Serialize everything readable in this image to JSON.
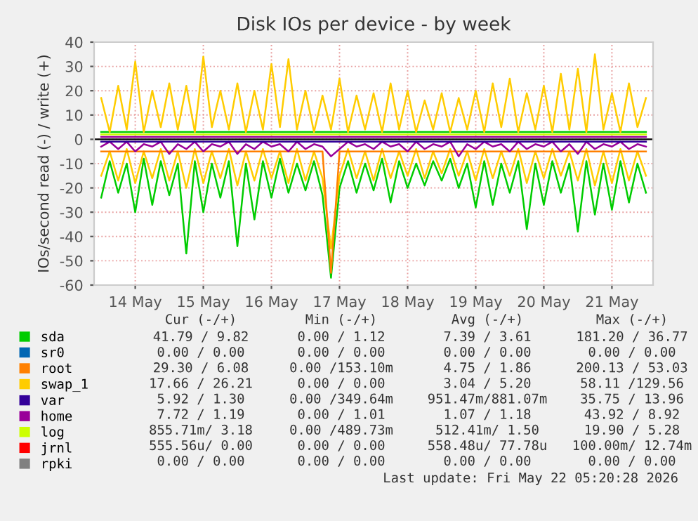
{
  "chart_data": {
    "type": "line",
    "title": "Disk IOs per device - by week",
    "ylabel": "IOs/second read (-) / write (+)",
    "x": [
      "2026-05-13T12:00",
      "2026-05-13T15:00",
      "2026-05-13T18:00",
      "2026-05-13T21:00",
      "2026-05-14T00:00",
      "2026-05-14T03:00",
      "2026-05-14T06:00",
      "2026-05-14T09:00",
      "2026-05-14T12:00",
      "2026-05-14T15:00",
      "2026-05-14T18:00",
      "2026-05-14T21:00",
      "2026-05-15T00:00",
      "2026-05-15T03:00",
      "2026-05-15T06:00",
      "2026-05-15T09:00",
      "2026-05-15T12:00",
      "2026-05-15T15:00",
      "2026-05-15T18:00",
      "2026-05-15T21:00",
      "2026-05-16T00:00",
      "2026-05-16T03:00",
      "2026-05-16T06:00",
      "2026-05-16T09:00",
      "2026-05-16T12:00",
      "2026-05-16T15:00",
      "2026-05-16T18:00",
      "2026-05-16T21:00",
      "2026-05-17T00:00",
      "2026-05-17T03:00",
      "2026-05-17T06:00",
      "2026-05-17T09:00",
      "2026-05-17T12:00",
      "2026-05-17T15:00",
      "2026-05-17T18:00",
      "2026-05-17T21:00",
      "2026-05-18T00:00",
      "2026-05-18T03:00",
      "2026-05-18T06:00",
      "2026-05-18T09:00",
      "2026-05-18T12:00",
      "2026-05-18T15:00",
      "2026-05-18T18:00",
      "2026-05-18T21:00",
      "2026-05-19T00:00",
      "2026-05-19T03:00",
      "2026-05-19T06:00",
      "2026-05-19T09:00",
      "2026-05-19T12:00",
      "2026-05-19T15:00",
      "2026-05-19T18:00",
      "2026-05-19T21:00",
      "2026-05-20T00:00",
      "2026-05-20T03:00",
      "2026-05-20T06:00",
      "2026-05-20T09:00",
      "2026-05-20T12:00",
      "2026-05-20T15:00",
      "2026-05-20T18:00",
      "2026-05-20T21:00",
      "2026-05-21T00:00",
      "2026-05-21T03:00",
      "2026-05-21T06:00",
      "2026-05-21T09:00",
      "2026-05-21T12:00"
    ],
    "series": [
      {
        "color": "#00cc00",
        "values": [
          -24,
          -9,
          -22,
          -10,
          -30,
          -8,
          -27,
          -9,
          -23,
          -10,
          -47,
          -9,
          -30,
          -10,
          -24,
          -9,
          -44,
          -10,
          -33,
          -9,
          -24,
          -8,
          -22,
          -10,
          -21,
          -9,
          -23,
          -57,
          -20,
          -9,
          -22,
          -10,
          -21,
          -8,
          -26,
          -9,
          -20,
          -10,
          -19,
          -9,
          -17,
          -8,
          -20,
          -10,
          -28,
          -9,
          -27,
          -10,
          -22,
          -9,
          -37,
          -10,
          -27,
          -9,
          -22,
          -10,
          -38,
          -9,
          -31,
          -10,
          -29,
          -9,
          -26,
          -10,
          -22
        ]
      },
      {
        "color": "#ffcc00",
        "values": [
          -15,
          -5,
          -17,
          -4,
          -18,
          -5,
          -16,
          -4,
          -17,
          -5,
          -20,
          -4,
          -18,
          -5,
          -16,
          -4,
          -19,
          -5,
          -17,
          -4,
          -16,
          -5,
          -18,
          -4,
          -17,
          -5,
          -16,
          -45,
          -15,
          -4,
          -16,
          -5,
          -17,
          -4,
          -16,
          -5,
          -15,
          -4,
          -16,
          -5,
          -14,
          -4,
          -15,
          -5,
          -17,
          -4,
          -16,
          -5,
          -15,
          -4,
          -18,
          -5,
          -16,
          -4,
          -15,
          -5,
          -17,
          -4,
          -19,
          -5,
          -18,
          -4,
          -17,
          -5,
          -15
        ]
      },
      {
        "color": "#ff8000",
        "x": [
          "2026-05-13T12:00",
          "2026-05-16T18:00",
          "2026-05-16T21:00",
          "2026-05-17T00:00",
          "2026-05-21T12:00"
        ],
        "values": [
          -5,
          -5,
          -55,
          -5,
          -5
        ]
      },
      {
        "color": "#990099",
        "values": [
          -3,
          -1,
          -4,
          -1,
          -5,
          -2,
          -3,
          -1,
          -6,
          -2,
          -4,
          -1,
          -5,
          -2,
          -3,
          -1,
          -6,
          -2,
          -4,
          -1,
          -3,
          -2,
          -5,
          -1,
          -4,
          -2,
          -3,
          -7,
          -4,
          -1,
          -3,
          -2,
          -4,
          -1,
          -3,
          -2,
          -5,
          -1,
          -4,
          -2,
          -3,
          -1,
          -7,
          -2,
          -4,
          -1,
          -3,
          -2,
          -5,
          -1,
          -4,
          -2,
          -3,
          -1,
          -5,
          -2,
          -6,
          -1,
          -4,
          -2,
          -3,
          -1,
          -4,
          -2,
          -3
        ]
      },
      {
        "color": "#330099",
        "x": [
          "2026-05-13T12:00",
          "2026-05-21T12:00"
        ],
        "values": [
          -1,
          -1
        ]
      },
      {
        "name": "sda",
        "color": "#00cc00",
        "x": [
          "2026-05-13T12:00",
          "2026-05-21T12:00"
        ],
        "values": [
          3,
          3
        ]
      },
      {
        "name": "sr0",
        "color": "#0066b3",
        "values": [
          null,
          null,
          null,
          null,
          null,
          null,
          null,
          null,
          null,
          null,
          null,
          null,
          null,
          null,
          null,
          null,
          null,
          null,
          null,
          null,
          null,
          null,
          null,
          null,
          null,
          null,
          null,
          null,
          null,
          null,
          null,
          null,
          null,
          null,
          null,
          null,
          null,
          null,
          null,
          null,
          null,
          null,
          null,
          null,
          null,
          null,
          null,
          null,
          null,
          null,
          null,
          null,
          null,
          null,
          null,
          null,
          null,
          null,
          null,
          null,
          null,
          null,
          null,
          null,
          null
        ]
      },
      {
        "name": "root",
        "color": "#ff8000",
        "values": [
          null,
          null,
          null,
          null,
          null,
          null,
          null,
          null,
          null,
          null,
          null,
          null,
          null,
          null,
          null,
          null,
          null,
          null,
          null,
          null,
          null,
          null,
          null,
          null,
          null,
          null,
          null,
          null,
          null,
          null,
          null,
          null,
          null,
          null,
          null,
          null,
          null,
          null,
          null,
          null,
          null,
          null,
          null,
          null,
          null,
          null,
          null,
          null,
          null,
          null,
          null,
          null,
          null,
          null,
          null,
          null,
          null,
          null,
          null,
          null,
          null,
          null,
          null,
          null,
          null
        ]
      },
      {
        "name": "swap_1",
        "color": "#ffcc00",
        "values": [
          17,
          3,
          22,
          4,
          32,
          3,
          20,
          5,
          23,
          4,
          22,
          3,
          34,
          5,
          20,
          4,
          23,
          3,
          20,
          4,
          31,
          5,
          33,
          4,
          20,
          3,
          18,
          4,
          25,
          3,
          18,
          4,
          19,
          3,
          23,
          4,
          20,
          3,
          16,
          4,
          19,
          3,
          17,
          4,
          20,
          3,
          23,
          5,
          25,
          3,
          19,
          4,
          22,
          3,
          27,
          4,
          29,
          3,
          35,
          4,
          19,
          3,
          23,
          5,
          17
        ]
      },
      {
        "name": "var",
        "color": "#330099",
        "values": [
          null,
          null,
          null,
          null,
          null,
          null,
          null,
          null,
          null,
          null,
          null,
          null,
          null,
          null,
          null,
          null,
          null,
          null,
          null,
          null,
          null,
          null,
          null,
          null,
          null,
          null,
          null,
          null,
          null,
          null,
          null,
          null,
          null,
          null,
          null,
          null,
          null,
          null,
          null,
          null,
          null,
          null,
          null,
          null,
          null,
          null,
          null,
          null,
          null,
          null,
          null,
          null,
          null,
          null,
          null,
          null,
          null,
          null,
          null,
          null,
          null,
          null,
          null,
          null,
          null
        ]
      },
      {
        "name": "home",
        "color": "#990099",
        "x": [
          "2026-05-13T12:00",
          "2026-05-21T12:00"
        ],
        "values": [
          1,
          1
        ]
      },
      {
        "name": "log",
        "color": "#ccff00",
        "x": [
          "2026-05-13T12:00",
          "2026-05-21T12:00"
        ],
        "values": [
          2,
          2
        ]
      },
      {
        "name": "jrnl",
        "color": "#ff0000",
        "values": [
          null,
          null,
          null,
          null,
          null,
          null,
          null,
          null,
          null,
          null,
          null,
          null,
          null,
          null,
          null,
          null,
          null,
          null,
          null,
          null,
          null,
          null,
          null,
          null,
          null,
          null,
          null,
          null,
          null,
          null,
          null,
          null,
          null,
          null,
          null,
          null,
          null,
          null,
          null,
          null,
          null,
          null,
          null,
          null,
          null,
          null,
          null,
          null,
          null,
          null,
          null,
          null,
          null,
          null,
          null,
          null,
          null,
          null,
          null,
          null,
          null,
          null,
          null,
          null,
          null
        ]
      },
      {
        "name": "rpki",
        "color": "#808080",
        "values": [
          null,
          null,
          null,
          null,
          null,
          null,
          null,
          null,
          null,
          null,
          null,
          null,
          null,
          null,
          null,
          null,
          null,
          null,
          null,
          null,
          null,
          null,
          null,
          null,
          null,
          null,
          null,
          null,
          null,
          null,
          null,
          null,
          null,
          null,
          null,
          null,
          null,
          null,
          null,
          null,
          null,
          null,
          null,
          null,
          null,
          null,
          null,
          null,
          null,
          null,
          null,
          null,
          null,
          null,
          null,
          null,
          null,
          null,
          null,
          null,
          null,
          null,
          null,
          null,
          null
        ]
      }
    ],
    "xlim": [
      "2026-05-13T09:30",
      "2026-05-21T14:30"
    ],
    "xticks": [
      {
        "value": "2026-05-14",
        "label": "14 May"
      },
      {
        "value": "2026-05-15",
        "label": "15 May"
      },
      {
        "value": "2026-05-16",
        "label": "16 May"
      },
      {
        "value": "2026-05-17",
        "label": "17 May"
      },
      {
        "value": "2026-05-18",
        "label": "18 May"
      },
      {
        "value": "2026-05-19",
        "label": "19 May"
      },
      {
        "value": "2026-05-20",
        "label": "20 May"
      },
      {
        "value": "2026-05-21",
        "label": "21 May"
      }
    ],
    "ylim": [
      -60,
      40
    ],
    "yticks": [
      -60,
      -50,
      -40,
      -30,
      -20,
      -10,
      0,
      10,
      20,
      30,
      40
    ],
    "grid": true,
    "legend": "bottom",
    "annotations": [
      "Cur (-/+)",
      "Min (-/+)",
      "Avg (-/+)",
      "Max (-/+)",
      "41.79 / 9.82",
      "0.00 / 1.12",
      "7.39 / 3.61",
      "181.20 / 36.77",
      "0.00 / 0.00",
      "0.00 / 0.00",
      "0.00 / 0.00",
      "0.00 / 0.00",
      "29.30 / 6.08",
      "0.00 /153.10m",
      "4.75 / 1.86",
      "200.13 / 53.03",
      "17.66 / 26.21",
      "0.00 / 0.00",
      "3.04 / 5.20",
      "58.11 /129.56",
      "5.92 / 1.30",
      "0.00 /349.64m",
      "951.47m/881.07m",
      "35.75 / 13.96",
      "7.72 / 1.19",
      "0.00 / 1.01",
      "1.07 / 1.18",
      "43.92 / 8.92",
      "855.71m/ 3.18",
      "0.00 /489.73m",
      "512.41m/ 1.50",
      "19.90 / 5.28",
      "555.56u/ 0.00",
      "0.00 / 0.00",
      "558.48u/ 77.78u",
      "100.00m/ 12.74m",
      "0.00 / 0.00",
      "0.00 / 0.00",
      "0.00 / 0.00",
      "0.00 / 0.00",
      "Last update: Fri May 22 05:20:28 2026"
    ]
  }
}
